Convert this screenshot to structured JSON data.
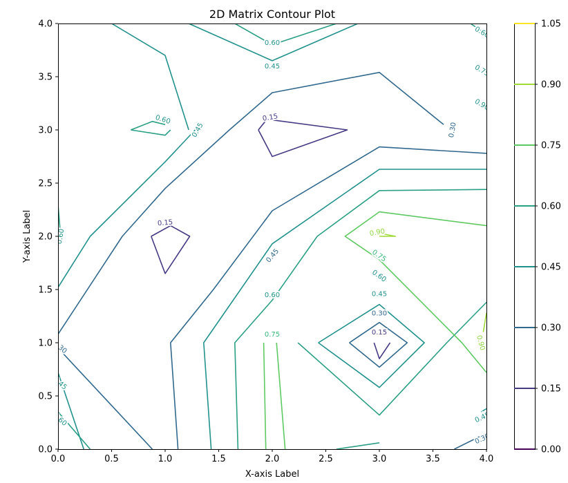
{
  "chart_data": {
    "type": "contour",
    "title": "2D Matrix Contour Plot",
    "xlabel": "X-axis Label",
    "ylabel": "Y-axis Label",
    "xlim": [
      0.0,
      4.0
    ],
    "ylim": [
      0.0,
      4.0
    ],
    "x_ticks": [
      "0.0",
      "0.5",
      "1.0",
      "1.5",
      "2.0",
      "2.5",
      "3.0",
      "3.5",
      "4.0"
    ],
    "y_ticks": [
      "0.0",
      "0.5",
      "1.0",
      "1.5",
      "2.0",
      "2.5",
      "3.0",
      "3.5",
      "4.0"
    ],
    "grid": false,
    "colormap": "viridis",
    "colorbar": {
      "levels": [
        0.0,
        0.15,
        0.3,
        0.45,
        0.6,
        0.75,
        0.9,
        1.05
      ],
      "tick_labels": [
        "0.00",
        "0.15",
        "0.30",
        "0.45",
        "0.60",
        "0.75",
        "0.90",
        "1.05"
      ],
      "colors": [
        "#440154",
        "#443983",
        "#31688e",
        "#21918c",
        "#35b779",
        "#90d743",
        "#fde725"
      ]
    },
    "contours": [
      {
        "level": "0.15",
        "color": "#443983",
        "paths": [
          [
            [
              1.87,
              3.0
            ],
            [
              2.0,
              2.75
            ],
            [
              2.7,
              3.0
            ],
            [
              1.95,
              3.1
            ],
            [
              1.87,
              3.0
            ]
          ],
          [
            [
              0.87,
              2.0
            ],
            [
              1.0,
              1.65
            ],
            [
              1.23,
              2.0
            ],
            [
              1.05,
              2.1
            ],
            [
              0.87,
              2.0
            ]
          ],
          [
            [
              2.95,
              1.0
            ],
            [
              3.0,
              0.85
            ],
            [
              3.1,
              1.0
            ]
          ]
        ]
      },
      {
        "level": "0.30",
        "color": "#31688e",
        "paths": [
          [
            [
              0.0,
              1.08
            ],
            [
              0.6,
              2.0
            ],
            [
              1.0,
              2.45
            ],
            [
              1.6,
              3.0
            ],
            [
              2.0,
              3.35
            ],
            [
              3.0,
              3.54
            ],
            [
              3.6,
              3.05
            ]
          ],
          [
            [
              4.0,
              2.78
            ],
            [
              3.0,
              2.84
            ],
            [
              2.0,
              2.24
            ],
            [
              1.45,
              1.5
            ],
            [
              1.05,
              1.0
            ],
            [
              1.12,
              0.0
            ]
          ],
          [
            [
              0.0,
              0.95
            ],
            [
              0.88,
              0.0
            ]
          ],
          [
            [
              2.72,
              1.0
            ],
            [
              3.0,
              0.77
            ],
            [
              3.26,
              1.0
            ],
            [
              3.0,
              1.19
            ],
            [
              2.72,
              1.0
            ]
          ],
          [
            [
              3.7,
              0.0
            ],
            [
              4.0,
              0.15
            ]
          ]
        ]
      },
      {
        "level": "0.45",
        "color": "#21918c",
        "paths": [
          [
            [
              0.0,
              1.52
            ],
            [
              0.3,
              2.0
            ],
            [
              1.0,
              2.7
            ],
            [
              1.28,
              3.0
            ]
          ],
          [
            [
              0.5,
              4.0
            ],
            [
              1.0,
              3.7
            ],
            [
              1.22,
              3.0
            ]
          ],
          [
            [
              1.22,
              4.0
            ],
            [
              2.0,
              3.65
            ],
            [
              2.8,
              4.0
            ]
          ],
          [
            [
              4.0,
              2.63
            ],
            [
              3.0,
              2.63
            ],
            [
              2.0,
              1.93
            ],
            [
              1.36,
              1.0
            ],
            [
              1.43,
              0.0
            ]
          ],
          [
            [
              0.0,
              0.72
            ],
            [
              0.24,
              0.0
            ]
          ],
          [
            [
              2.43,
              1.0
            ],
            [
              3.0,
              0.58
            ],
            [
              3.42,
              1.0
            ],
            [
              3.0,
              1.36
            ],
            [
              2.43,
              1.0
            ]
          ],
          [
            [
              3.95,
              0.35
            ],
            [
              4.0,
              0.38
            ]
          ]
        ]
      },
      {
        "level": "0.60",
        "color": "#2a9f84",
        "paths": [
          [
            [
              0.68,
              3.0
            ],
            [
              0.88,
              3.08
            ],
            [
              1.0,
              3.05
            ]
          ],
          [
            [
              0.68,
              3.0
            ],
            [
              1.0,
              2.95
            ],
            [
              1.05,
              3.0
            ]
          ],
          [
            [
              1.65,
              4.0
            ],
            [
              2.0,
              3.8
            ],
            [
              2.6,
              4.0
            ]
          ],
          [
            [
              4.0,
              2.44
            ],
            [
              3.0,
              2.43
            ],
            [
              2.42,
              2.0
            ],
            [
              2.0,
              1.4
            ],
            [
              1.65,
              1.0
            ],
            [
              1.68,
              0.0
            ]
          ],
          [
            [
              0.0,
              0.35
            ],
            [
              0.3,
              0.0
            ]
          ],
          [
            [
              2.24,
              1.0
            ],
            [
              3.0,
              0.32
            ],
            [
              3.63,
              1.0
            ],
            [
              4.0,
              1.38
            ]
          ],
          [
            [
              2.6,
              0.0
            ],
            [
              3.0,
              0.06
            ]
          ],
          [
            [
              3.85,
              4.0
            ],
            [
              4.0,
              3.9
            ]
          ],
          [
            [
              0.0,
              2.3
            ],
            [
              0.02,
              2.05
            ]
          ]
        ]
      },
      {
        "level": "0.75",
        "color": "#5ec962",
        "paths": [
          [
            [
              4.0,
              2.1
            ],
            [
              3.0,
              2.23
            ],
            [
              2.68,
              2.0
            ],
            [
              3.0,
              1.78
            ],
            [
              3.77,
              1.0
            ],
            [
              4.0,
              0.72
            ]
          ],
          [
            [
              1.92,
              1.0
            ],
            [
              1.94,
              0.0
            ]
          ],
          [
            [
              2.04,
              1.0
            ],
            [
              2.12,
              0.0
            ]
          ]
        ]
      },
      {
        "level": "0.90",
        "color": "#a0da39",
        "paths": [
          [
            [
              3.0,
              2.0
            ],
            [
              3.15,
              2.0
            ],
            [
              3.0,
              2.03
            ]
          ],
          [
            [
              3.97,
              1.1
            ],
            [
              4.0,
              1.28
            ]
          ]
        ]
      }
    ],
    "contour_labels": [
      {
        "text": "0.60",
        "x": 2.0,
        "y": 3.82,
        "color": "#21918c",
        "rot": 0
      },
      {
        "text": "0.45",
        "x": 2.0,
        "y": 3.6,
        "color": "#21918c",
        "rot": 0
      },
      {
        "text": "0.15",
        "x": 1.98,
        "y": 3.12,
        "color": "#443983",
        "rot": -10
      },
      {
        "text": "0.60",
        "x": 0.98,
        "y": 3.1,
        "color": "#21918c",
        "rot": 18
      },
      {
        "text": "0.45",
        "x": 1.3,
        "y": 3.0,
        "color": "#21918c",
        "rot": -60
      },
      {
        "text": "0.30",
        "x": 3.68,
        "y": 3.0,
        "color": "#31688e",
        "rot": -80
      },
      {
        "text": "0.15",
        "x": 1.0,
        "y": 2.13,
        "color": "#443983",
        "rot": -5
      },
      {
        "text": "0.45",
        "x": 2.0,
        "y": 1.82,
        "color": "#31688e",
        "rot": -50
      },
      {
        "text": "0.90",
        "x": 2.98,
        "y": 2.04,
        "color": "#90d743",
        "rot": -10
      },
      {
        "text": "0.75",
        "x": 3.0,
        "y": 1.82,
        "color": "#35b779",
        "rot": 35
      },
      {
        "text": "0.60",
        "x": 3.0,
        "y": 1.63,
        "color": "#21918c",
        "rot": 35
      },
      {
        "text": "0.60",
        "x": 2.0,
        "y": 1.45,
        "color": "#21918c",
        "rot": 0
      },
      {
        "text": "0.45",
        "x": 3.0,
        "y": 1.46,
        "color": "#21918c",
        "rot": 0
      },
      {
        "text": "0.30",
        "x": 3.0,
        "y": 1.28,
        "color": "#31688e",
        "rot": 0
      },
      {
        "text": "0.15",
        "x": 3.0,
        "y": 1.1,
        "color": "#443983",
        "rot": 0
      },
      {
        "text": "0.75",
        "x": 2.0,
        "y": 1.08,
        "color": "#35b779",
        "rot": 0
      },
      {
        "text": "0.90",
        "x": 3.95,
        "y": 1.0,
        "color": "#90d743",
        "rot": 75
      },
      {
        "text": "0.60",
        "x": 0.02,
        "y": 2.0,
        "color": "#21918c",
        "rot": -80
      },
      {
        "text": "0.30",
        "x": 0.02,
        "y": 0.96,
        "color": "#31688e",
        "rot": 40
      },
      {
        "text": "0.45",
        "x": 0.02,
        "y": 0.62,
        "color": "#21918c",
        "rot": 40
      },
      {
        "text": "0.60",
        "x": 0.02,
        "y": 0.28,
        "color": "#21918c",
        "rot": 40
      },
      {
        "text": "0.60",
        "x": 3.96,
        "y": 3.92,
        "color": "#21918c",
        "rot": 30
      },
      {
        "text": "0.75",
        "x": 3.96,
        "y": 3.56,
        "color": "#21918c",
        "rot": 30
      },
      {
        "text": "0.90",
        "x": 3.96,
        "y": 3.24,
        "color": "#21918c",
        "rot": 30
      },
      {
        "text": "0.45",
        "x": 3.96,
        "y": 0.3,
        "color": "#21918c",
        "rot": -25
      },
      {
        "text": "0.30",
        "x": 3.96,
        "y": 0.1,
        "color": "#31688e",
        "rot": -25
      }
    ]
  }
}
